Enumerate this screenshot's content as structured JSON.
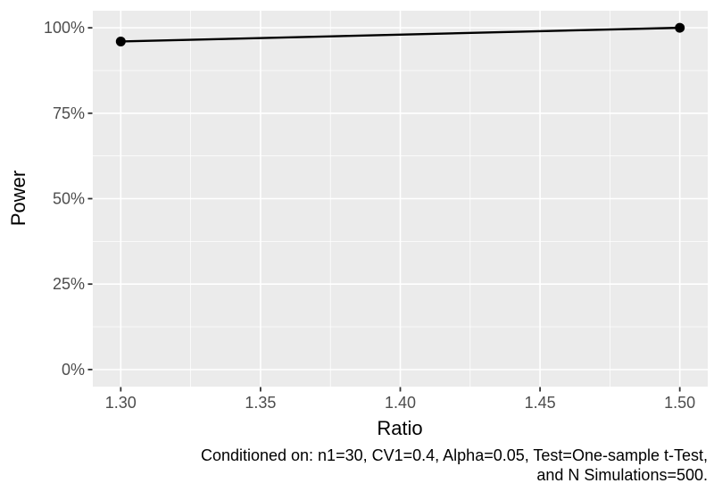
{
  "chart_data": {
    "type": "line",
    "title": "",
    "xlabel": "Ratio",
    "ylabel": "Power",
    "series": [
      {
        "name": "Power",
        "x": [
          1.3,
          1.5
        ],
        "y_percent": [
          96,
          100
        ]
      }
    ],
    "x_ticks": {
      "values": [
        1.3,
        1.35,
        1.4,
        1.45,
        1.5
      ],
      "labels": [
        "1.30",
        "1.35",
        "1.40",
        "1.45",
        "1.50"
      ]
    },
    "y_ticks": {
      "values": [
        0,
        25,
        50,
        75,
        100
      ],
      "labels": [
        "0%",
        "25%",
        "50%",
        "75%",
        "100%"
      ]
    },
    "x_minor_gridlines": [
      1.325,
      1.375,
      1.425,
      1.475
    ],
    "y_minor_gridlines": [
      12.5,
      37.5,
      62.5,
      87.5
    ],
    "xlim": [
      1.29,
      1.51
    ],
    "ylim_percent": [
      -5,
      105
    ],
    "grid": "major and minor, white on gray panel",
    "legend": "none",
    "caption_lines": {
      "line1": "Conditioned on: n1=30, CV1=0.4, Alpha=0.05, Test=One-sample t-Test,",
      "line2": "and N Simulations=500."
    },
    "colors": {
      "panel_bg": "#EBEBEB",
      "gridline": "#FFFFFF",
      "tick_mark": "#333333",
      "tick_label": "#4D4D4D",
      "axis_title": "#000000",
      "series_line": "#000000",
      "data_point": "#000000",
      "caption": "#000000",
      "page_bg": "#FFFFFF"
    }
  }
}
